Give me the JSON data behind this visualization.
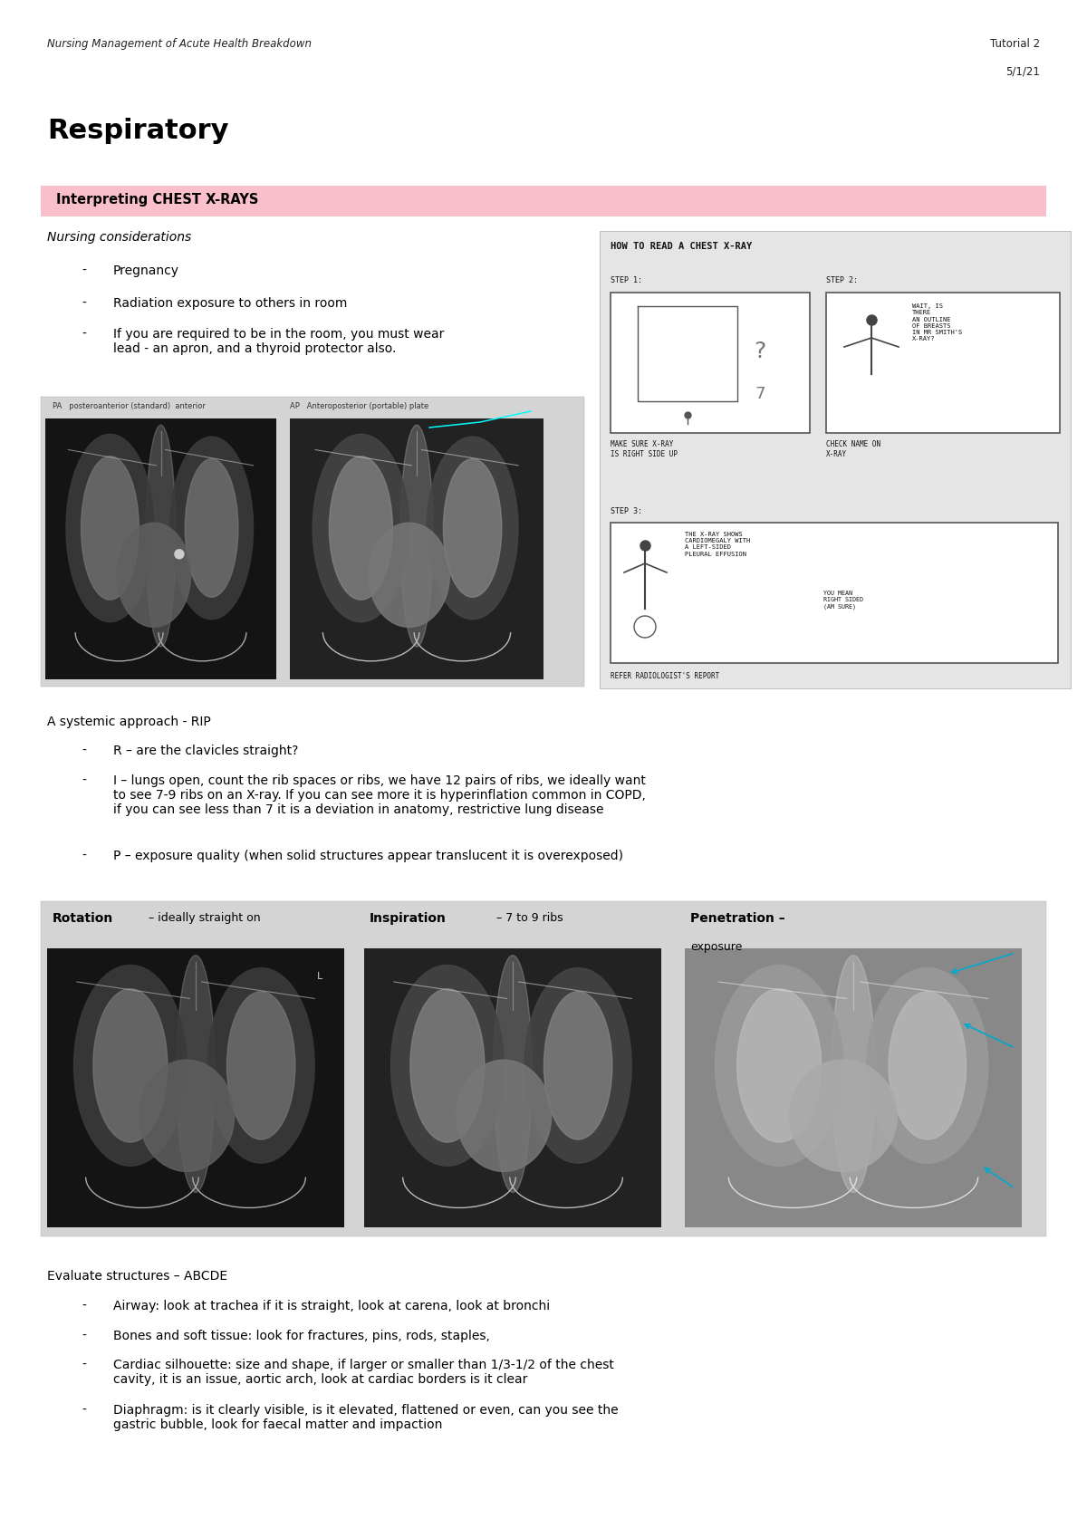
{
  "bg_color": "#ffffff",
  "header_left": "Nursing Management of Acute Health Breakdown",
  "header_right_line1": "Tutorial 2",
  "header_right_line2": "5/1/21",
  "title": "Respiratory",
  "section_bar_text": "Interpreting CHEST X-RAYS",
  "section_bar_color": "#f9c0cb",
  "section_bar_text_color": "#000000",
  "nursing_considerations_title": "Nursing considerations",
  "nursing_bullets": [
    "Pregnancy",
    "Radiation exposure to others in room",
    "If you are required to be in the room, you must wear\nlead - an apron, and a thyroid protector also."
  ],
  "systemic_title": "A systemic approach - RIP",
  "systemic_bullets": [
    "R – are the clavicles straight?",
    "I – lungs open, count the rib spaces or ribs, we have 12 pairs of ribs, we ideally want\nto see 7-9 ribs on an X-ray. If you can see more it is hyperinflation common in COPD,\nif you can see less than 7 it is a deviation in anatomy, restrictive lung disease",
    "P – exposure quality (when solid structures appear translucent it is overexposed)"
  ],
  "rip_panel_labels": [
    "Rotation – ideally straight on",
    "Inspiration – 7 to 9 ribs",
    "Penetration –"
  ],
  "rip_panel_sublabels": [
    "",
    "",
    "exposure"
  ],
  "evaluate_title": "Evaluate structures – ABCDE",
  "evaluate_bullets": [
    "Airway: look at trachea if it is straight, look at carena, look at bronchi",
    "Bones and soft tissue: look for fractures, pins, rods, staples,",
    "Cardiac silhouette: size and shape, if larger or smaller than 1/3-1/2 of the chest\ncavity, it is an issue, aortic arch, look at cardiac borders is it clear",
    "Diaphragm: is it clearly visible, is it elevated, flattened or even, can you see the\ngastric bubble, look for faecal matter and impaction"
  ]
}
